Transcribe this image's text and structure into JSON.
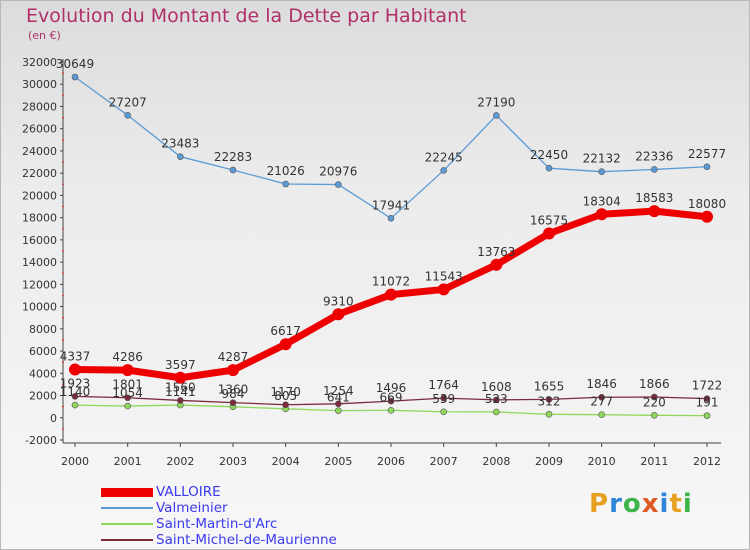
{
  "title": "Evolution du Montant de la Dette par Habitant",
  "subtitle": "(en €)",
  "logo": {
    "letters": [
      "P",
      "r",
      "o",
      "x",
      "i",
      "t",
      "i"
    ],
    "colors": [
      "#e8a020",
      "#2f86d8",
      "#3cb44a",
      "#e05a28",
      "#2f86d8",
      "#e8a020",
      "#3cb44a"
    ]
  },
  "chart_data": {
    "type": "line",
    "x": [
      2000,
      2001,
      2002,
      2003,
      2004,
      2005,
      2006,
      2007,
      2008,
      2009,
      2010,
      2011,
      2012
    ],
    "ylim": [
      -2000,
      32000
    ],
    "yticks": [
      -2000,
      0,
      2000,
      4000,
      6000,
      8000,
      10000,
      12000,
      14000,
      16000,
      18000,
      20000,
      22000,
      24000,
      26000,
      28000,
      30000,
      32000
    ],
    "grid": false,
    "legend_position": "bottom-left",
    "series": [
      {
        "name": "Saint-Martin-d'Arc",
        "color": "#8fd85c",
        "values": [
          1140,
          1054,
          1141,
          984,
          805,
          641,
          669,
          539,
          523,
          312,
          277,
          220,
          191
        ]
      },
      {
        "name": "Saint-Michel-de-Maurienne",
        "color": "#7a2a3a",
        "values": [
          1923,
          1801,
          1560,
          1360,
          1170,
          1254,
          1496,
          1764,
          1608,
          1655,
          1846,
          1866,
          1722
        ]
      },
      {
        "name": "Valmeinier",
        "color": "#5b9bd5",
        "values": [
          30649,
          27207,
          23483,
          22283,
          21026,
          20976,
          17941,
          22245,
          27190,
          22450,
          22132,
          22336,
          22577
        ]
      },
      {
        "name": "VALLOIRE",
        "color": "#ee0000",
        "values": [
          4337,
          4286,
          3597,
          4287,
          6617,
          9310,
          11072,
          11543,
          13763,
          16575,
          18304,
          18583,
          18080
        ]
      }
    ],
    "legend": [
      "VALLOIRE",
      "Valmeinier",
      "Saint-Martin-d'Arc",
      "Saint-Michel-de-Maurienne"
    ]
  }
}
